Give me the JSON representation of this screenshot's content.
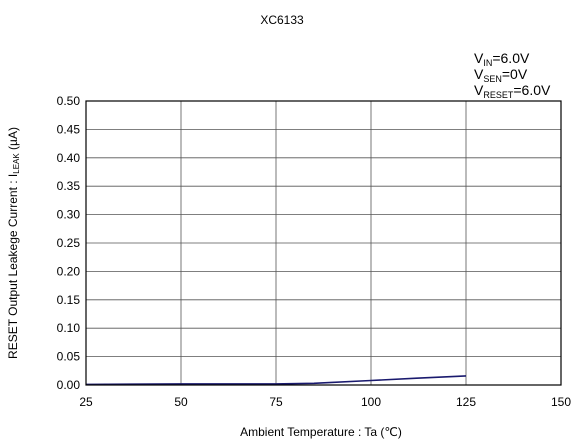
{
  "chart_data": {
    "type": "line",
    "title": "XC6133",
    "conditions": [
      {
        "base": "V",
        "sub": "IN",
        "rest": "=6.0V"
      },
      {
        "base": "V",
        "sub": "SEN",
        "rest": "=0V"
      },
      {
        "base": "V",
        "sub": "RESET",
        "rest": "=6.0V"
      }
    ],
    "xlabel": "Ambient Temperature : Ta (℃)",
    "ylabel": {
      "text": "RESET Output Leakege Current : I",
      "sub": "LEAK",
      "unit": " (µA)"
    },
    "xlim": [
      25,
      150
    ],
    "ylim": [
      0,
      0.5
    ],
    "xticks": [
      25,
      50,
      75,
      100,
      125,
      150
    ],
    "xtick_labels": [
      "25",
      "50",
      "75",
      "100",
      "125",
      "150"
    ],
    "yticks": [
      0,
      0.05,
      0.1,
      0.15,
      0.2,
      0.25,
      0.3,
      0.35,
      0.4,
      0.45,
      0.5
    ],
    "ytick_labels": [
      "0.00",
      "0.05",
      "0.10",
      "0.15",
      "0.20",
      "0.25",
      "0.30",
      "0.35",
      "0.40",
      "0.45",
      "0.50"
    ],
    "grid": {
      "vertical": true,
      "horizontal": true
    },
    "series": [
      {
        "color": "#1a1a6e",
        "x": [
          25,
          50,
          75,
          85,
          100,
          112,
          125
        ],
        "y": [
          0.001,
          0.002,
          0.002,
          0.003,
          0.008,
          0.012,
          0.016
        ]
      }
    ]
  }
}
